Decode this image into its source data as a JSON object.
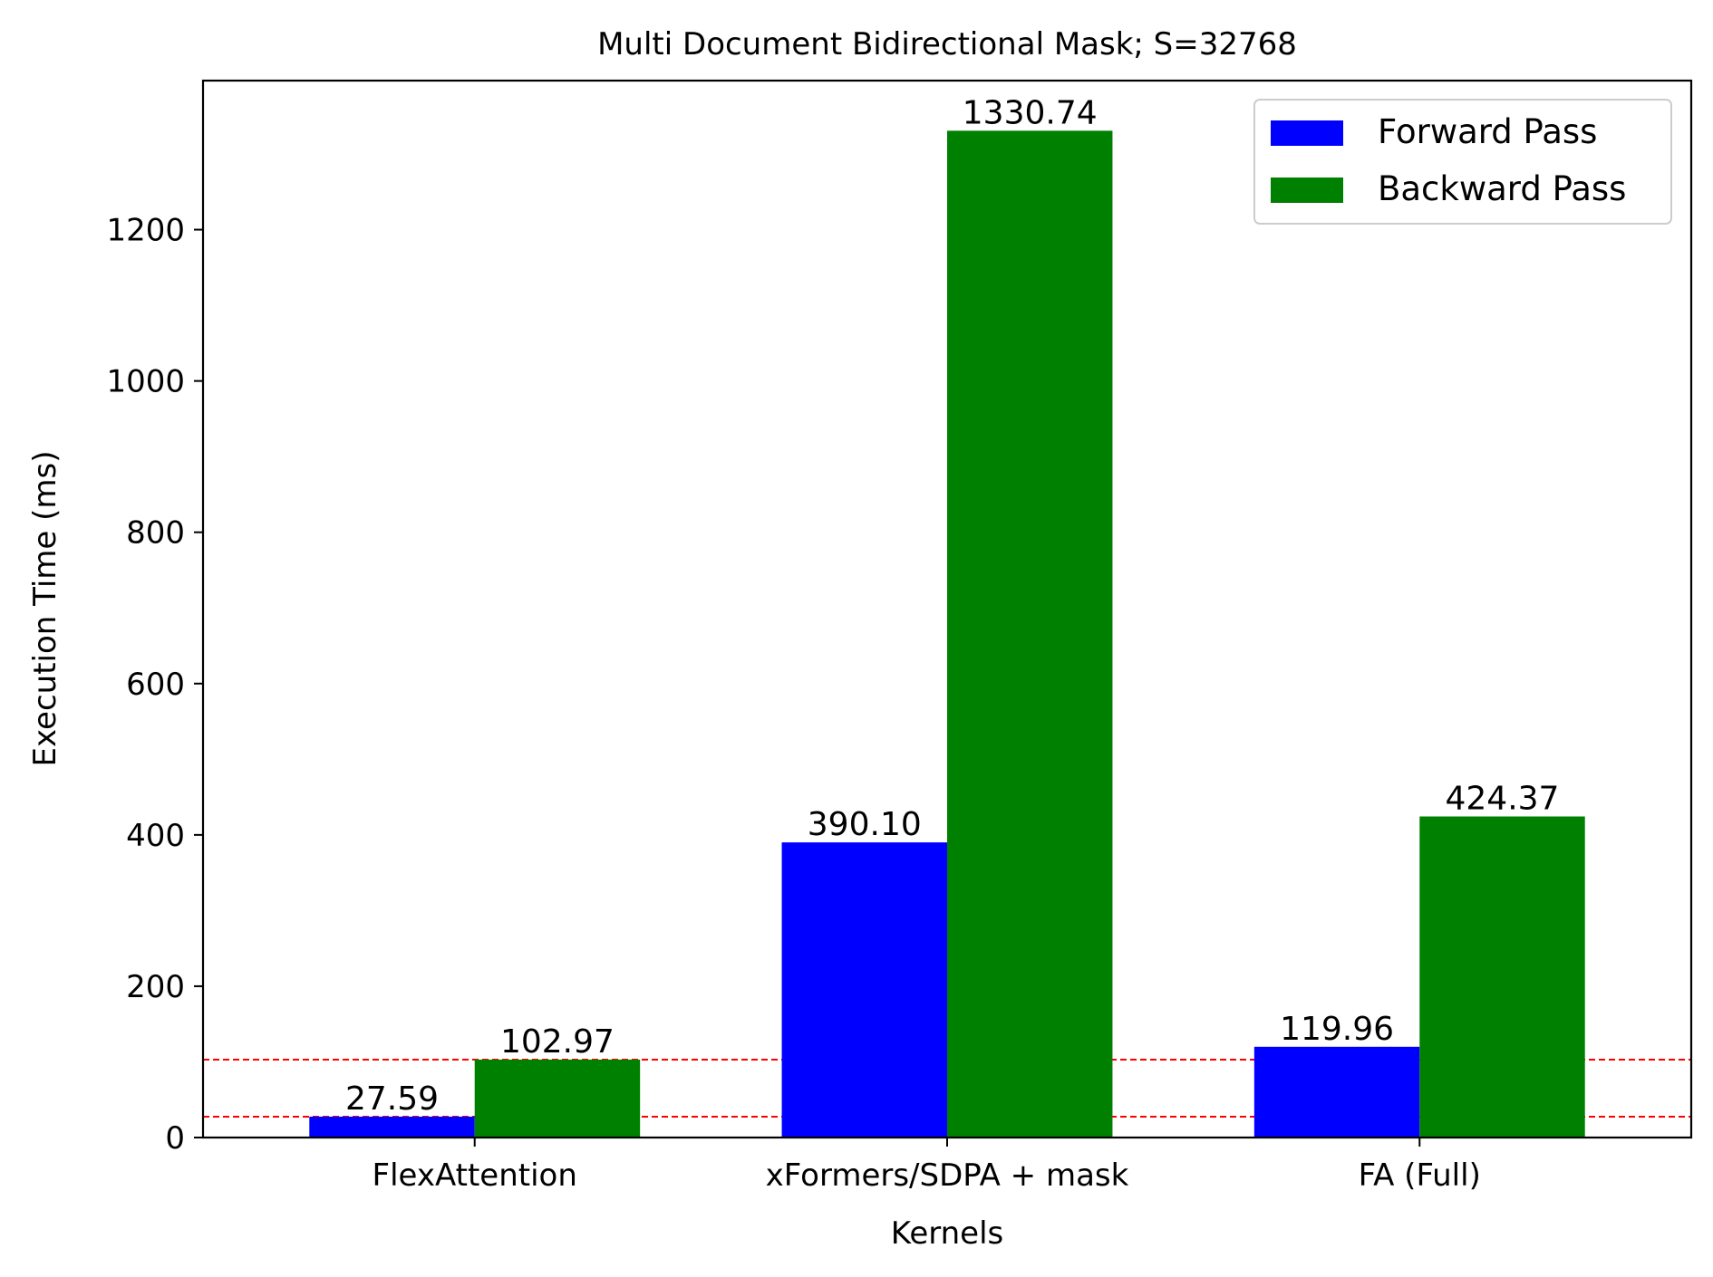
{
  "chart_data": {
    "type": "bar",
    "title": "Multi Document Bidirectional Mask; S=32768",
    "xlabel": "Kernels",
    "ylabel": "Execution Time (ms)",
    "categories": [
      "FlexAttention",
      "xFormers/SDPA + mask",
      "FA (Full)"
    ],
    "series": [
      {
        "name": "Forward Pass",
        "color": "#0000ff",
        "values": [
          27.59,
          390.1,
          119.96
        ],
        "labels": [
          "27.59",
          "390.10",
          "119.96"
        ]
      },
      {
        "name": "Backward Pass",
        "color": "#008000",
        "values": [
          102.97,
          1330.74,
          424.37
        ],
        "labels": [
          "102.97",
          "1330.74",
          "424.37"
        ]
      }
    ],
    "ylim": [
      0,
      1397
    ],
    "yticks": [
      0,
      200,
      400,
      600,
      800,
      1000,
      1200
    ],
    "reference_lines": [
      {
        "y": 27.59,
        "color": "#ff0000",
        "style": "dashed"
      },
      {
        "y": 102.97,
        "color": "#ff0000",
        "style": "dashed"
      }
    ],
    "legend": "top-right",
    "grid": false
  }
}
